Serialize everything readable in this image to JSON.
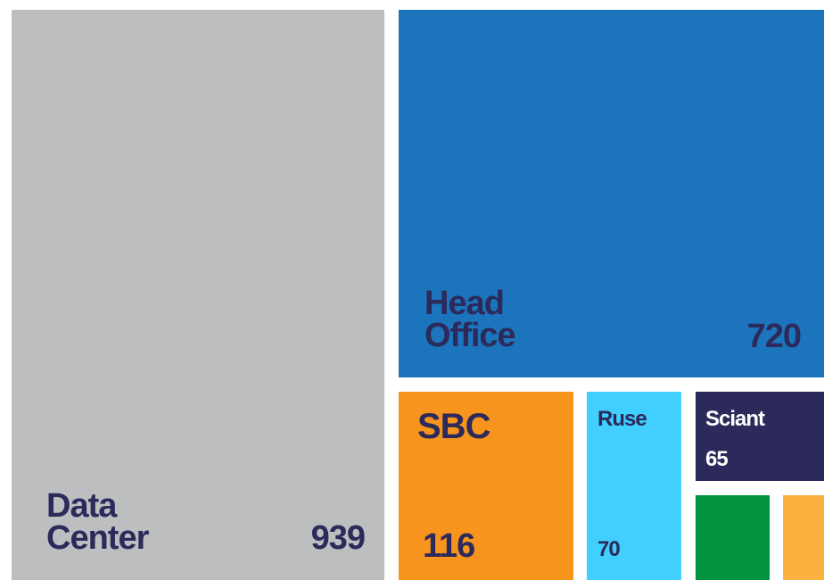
{
  "chart_data": {
    "type": "treemap",
    "categories": [
      "Data Center",
      "Head Office",
      "SBC",
      "Ruse",
      "Sciant",
      null,
      null
    ],
    "values": [
      939,
      720,
      116,
      70,
      65,
      36,
      20
    ],
    "colors": [
      "#bdbec0",
      "#1c75bc",
      "#f7941d",
      "#40cfff",
      "#2b2a5a",
      "#00923f",
      "#fbb040"
    ]
  }
}
